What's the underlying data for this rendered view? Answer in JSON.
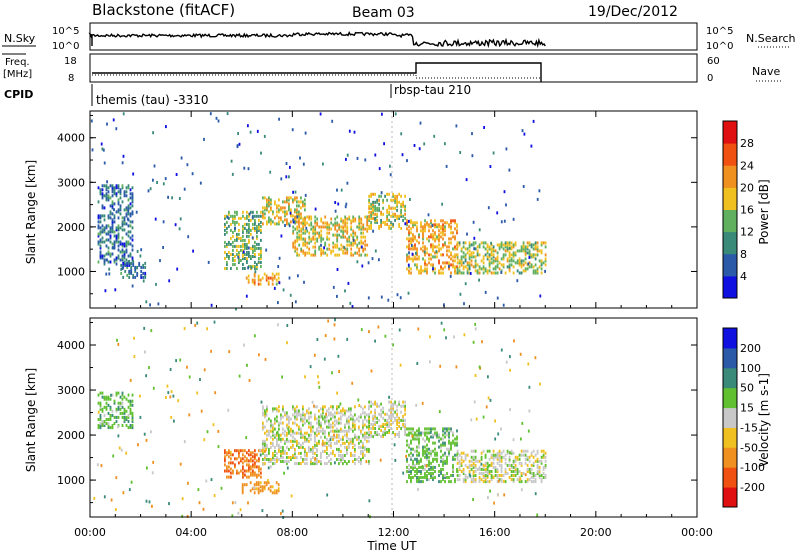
{
  "header": {
    "title": "Blackstone (fitACF)",
    "beam": "Beam 03",
    "date": "19/Dec/2012"
  },
  "panels": {
    "nsky": {
      "label": "N.Sky",
      "left_top": "10^5",
      "left_bottom": "10^0",
      "right_top": "10^5",
      "right_bottom": "10^0",
      "right_label": "N.Search"
    },
    "freq": {
      "label_line1": "Freq.",
      "label_line2": "[MHz]",
      "left_top": "18",
      "left_bottom": "8",
      "right_top": "60",
      "right_bottom": "0",
      "right_label": "Nave"
    },
    "cpid": {
      "label": "CPID",
      "mode1": "themis (tau) -3310",
      "mode2": "rbsp-tau 210"
    }
  },
  "chart_data": [
    {
      "type": "heatmap",
      "name": "power",
      "ylabel": "Slant Range [km]",
      "y_ticks": [
        "1000",
        "2000",
        "3000",
        "4000"
      ],
      "ylim": [
        180,
        4600
      ],
      "xlim": [
        0,
        24
      ],
      "colorbar": {
        "label": "Power [dB]",
        "tick_labels": [
          "4",
          "8",
          "12",
          "16",
          "20",
          "24",
          "28"
        ],
        "colors": [
          "#1010e0",
          "#2a5aa8",
          "#3a8a7a",
          "#60b060",
          "#f0c020",
          "#f09020",
          "#f05010",
          "#e01010"
        ]
      },
      "regions": [
        {
          "t": [
            0.3,
            1.7
          ],
          "r": [
            1200,
            3000
          ],
          "p": 8
        },
        {
          "t": [
            1.2,
            2.2
          ],
          "r": [
            900,
            1300
          ],
          "p": 8
        },
        {
          "t": [
            5.3,
            6.8
          ],
          "r": [
            1100,
            2400
          ],
          "p": 14
        },
        {
          "t": [
            6.0,
            7.5
          ],
          "r": [
            750,
            1000
          ],
          "p": 20
        },
        {
          "t": [
            6.8,
            8.5
          ],
          "r": [
            2100,
            2700
          ],
          "p": 18
        },
        {
          "t": [
            8.0,
            11.0
          ],
          "r": [
            1400,
            2300
          ],
          "p": 18
        },
        {
          "t": [
            11.0,
            12.5
          ],
          "r": [
            2000,
            2800
          ],
          "p": 16
        },
        {
          "t": [
            12.5,
            14.5
          ],
          "r": [
            1000,
            2200
          ],
          "p": 20
        },
        {
          "t": [
            14.5,
            18.0
          ],
          "r": [
            1000,
            1700
          ],
          "p": 16
        }
      ]
    },
    {
      "type": "heatmap",
      "name": "velocity",
      "ylabel": "Slant Range [km]",
      "y_ticks": [
        "1000",
        "2000",
        "3000",
        "4000"
      ],
      "ylim": [
        180,
        4600
      ],
      "xlim": [
        0,
        24
      ],
      "xlabel": "Time UT",
      "x_ticks": [
        "00:00",
        "04:00",
        "08:00",
        "12:00",
        "16:00",
        "20:00",
        "00:00"
      ],
      "colorbar": {
        "label": "Velocity [m s-1]",
        "tick_labels": [
          "-200",
          "-100",
          "-50",
          "-15",
          "15",
          "50",
          "100",
          "200"
        ],
        "colors": [
          "#e01010",
          "#f05010",
          "#f09020",
          "#f0c020",
          "#c8c8c8",
          "#60c030",
          "#3a8a7a",
          "#2a5aa8",
          "#1010e0"
        ]
      },
      "regions": [
        {
          "t": [
            0.3,
            1.7
          ],
          "r": [
            2200,
            3000
          ],
          "v": 20
        },
        {
          "t": [
            5.3,
            6.8
          ],
          "r": [
            1100,
            1700
          ],
          "v": -70
        },
        {
          "t": [
            6.0,
            7.5
          ],
          "r": [
            750,
            1000
          ],
          "v": -40
        },
        {
          "t": [
            6.8,
            11.0
          ],
          "r": [
            1400,
            2700
          ],
          "v": 0
        },
        {
          "t": [
            11.0,
            12.5
          ],
          "r": [
            2000,
            2800
          ],
          "v": 0
        },
        {
          "t": [
            12.5,
            14.5
          ],
          "r": [
            1000,
            2200
          ],
          "v": 20
        },
        {
          "t": [
            14.5,
            18.0
          ],
          "r": [
            1000,
            1700
          ],
          "v": 0
        }
      ]
    }
  ]
}
